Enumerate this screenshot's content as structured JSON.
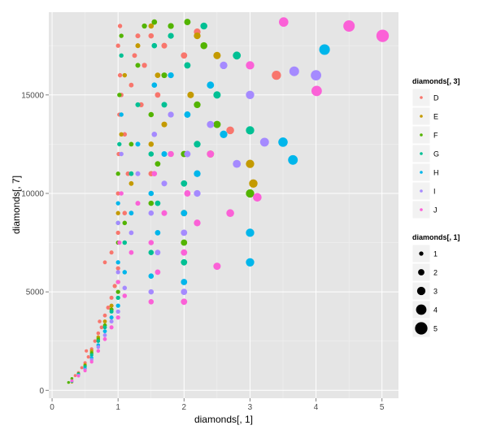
{
  "chart_data": {
    "type": "scatter",
    "xlabel": "diamonds[, 1]",
    "ylabel": "diamonds[, 7]",
    "xlim": [
      -0.05,
      5.25
    ],
    "ylim": [
      -400,
      19200
    ],
    "x_ticks": [
      0,
      1,
      2,
      3,
      4,
      5
    ],
    "x_tick_labels": [
      "0",
      "1",
      "2",
      "3",
      "4",
      "5"
    ],
    "y_ticks": [
      0,
      5000,
      10000,
      15000
    ],
    "y_tick_labels": [
      "0",
      "5000",
      "10000",
      "15000"
    ],
    "grid": true,
    "background": "#e5e5e5",
    "color_legend": {
      "title": "diamonds[, 3]",
      "placement": "right",
      "entries": [
        {
          "label": "D",
          "color": "#f8766d"
        },
        {
          "label": "E",
          "color": "#c49a00"
        },
        {
          "label": "F",
          "color": "#53b400"
        },
        {
          "label": "G",
          "color": "#00c094"
        },
        {
          "label": "H",
          "color": "#00b6eb"
        },
        {
          "label": "I",
          "color": "#a58aff"
        },
        {
          "label": "J",
          "color": "#fb61d7"
        }
      ]
    },
    "size_legend": {
      "title": "diamonds[, 1]",
      "placement": "right",
      "entries": [
        {
          "label": "1",
          "value": 1
        },
        {
          "label": "2",
          "value": 2
        },
        {
          "label": "3",
          "value": 3
        },
        {
          "label": "4",
          "value": 4
        },
        {
          "label": "5",
          "value": 5
        }
      ]
    },
    "series": [
      {
        "name": "D",
        "color": "#f8766d",
        "points": [
          [
            0.3,
            500
          ],
          [
            0.35,
            750
          ],
          [
            0.4,
            900
          ],
          [
            0.45,
            1150
          ],
          [
            0.5,
            1400
          ],
          [
            0.52,
            2000
          ],
          [
            0.55,
            1700
          ],
          [
            0.6,
            2100
          ],
          [
            0.65,
            2500
          ],
          [
            0.7,
            2900
          ],
          [
            0.72,
            3500
          ],
          [
            0.75,
            3200
          ],
          [
            0.8,
            3800
          ],
          [
            0.85,
            4200
          ],
          [
            0.9,
            4700
          ],
          [
            0.95,
            5300
          ],
          [
            1.0,
            6200
          ],
          [
            1.0,
            8000
          ],
          [
            1.0,
            10000
          ],
          [
            1.01,
            12000
          ],
          [
            1.02,
            14000
          ],
          [
            1.03,
            16000
          ],
          [
            1.03,
            18500
          ],
          [
            1.05,
            15000
          ],
          [
            1.1,
            13000
          ],
          [
            1.1,
            9000
          ],
          [
            1.15,
            11000
          ],
          [
            1.2,
            15500
          ],
          [
            1.25,
            17000
          ],
          [
            1.3,
            18000
          ],
          [
            1.35,
            14500
          ],
          [
            1.4,
            16500
          ],
          [
            1.5,
            18000
          ],
          [
            1.5,
            11000
          ],
          [
            1.6,
            15000
          ],
          [
            1.7,
            17500
          ],
          [
            0.9,
            7000
          ],
          [
            0.8,
            6500
          ],
          [
            1.0,
            17500
          ],
          [
            2.7,
            13200
          ],
          [
            3.4,
            16000
          ],
          [
            2.0,
            17000
          ],
          [
            2.2,
            18200
          ],
          [
            1.8,
            12000
          ]
        ]
      },
      {
        "name": "E",
        "color": "#c49a00",
        "points": [
          [
            0.3,
            420
          ],
          [
            0.4,
            800
          ],
          [
            0.5,
            1300
          ],
          [
            0.6,
            2000
          ],
          [
            0.7,
            2700
          ],
          [
            0.8,
            3500
          ],
          [
            0.9,
            4300
          ],
          [
            1.0,
            5500
          ],
          [
            1.0,
            9000
          ],
          [
            1.05,
            13000
          ],
          [
            1.1,
            16000
          ],
          [
            1.2,
            10500
          ],
          [
            1.3,
            17500
          ],
          [
            1.5,
            12500
          ],
          [
            1.5,
            18500
          ],
          [
            1.6,
            16000
          ],
          [
            1.7,
            13500
          ],
          [
            2.0,
            9000
          ],
          [
            2.1,
            15000
          ],
          [
            2.2,
            18000
          ],
          [
            2.4,
            12000
          ],
          [
            3.0,
            11500
          ],
          [
            3.05,
            10500
          ],
          [
            2.5,
            17000
          ]
        ]
      },
      {
        "name": "F",
        "color": "#53b400",
        "points": [
          [
            0.25,
            400
          ],
          [
            0.3,
            600
          ],
          [
            0.4,
            850
          ],
          [
            0.5,
            1250
          ],
          [
            0.6,
            1900
          ],
          [
            0.7,
            2600
          ],
          [
            0.8,
            3300
          ],
          [
            0.9,
            4100
          ],
          [
            1.0,
            5000
          ],
          [
            1.0,
            7500
          ],
          [
            1.0,
            11000
          ],
          [
            1.02,
            15000
          ],
          [
            1.05,
            18000
          ],
          [
            1.1,
            8500
          ],
          [
            1.2,
            12500
          ],
          [
            1.3,
            16500
          ],
          [
            1.4,
            18500
          ],
          [
            1.5,
            9500
          ],
          [
            1.5,
            14000
          ],
          [
            1.55,
            18700
          ],
          [
            1.6,
            11500
          ],
          [
            1.7,
            16000
          ],
          [
            1.8,
            18500
          ],
          [
            2.0,
            7500
          ],
          [
            2.0,
            12000
          ],
          [
            2.05,
            18700
          ],
          [
            2.2,
            14500
          ],
          [
            2.3,
            17500
          ],
          [
            2.5,
            13500
          ],
          [
            3.0,
            10000
          ]
        ]
      },
      {
        "name": "G",
        "color": "#00c094",
        "points": [
          [
            0.3,
            450
          ],
          [
            0.4,
            820
          ],
          [
            0.5,
            1200
          ],
          [
            0.6,
            1800
          ],
          [
            0.7,
            2500
          ],
          [
            0.8,
            3200
          ],
          [
            0.9,
            4000
          ],
          [
            1.0,
            4700
          ],
          [
            1.0,
            8500
          ],
          [
            1.02,
            12500
          ],
          [
            1.05,
            17000
          ],
          [
            1.1,
            7500
          ],
          [
            1.2,
            11000
          ],
          [
            1.3,
            14500
          ],
          [
            1.5,
            7000
          ],
          [
            1.5,
            12000
          ],
          [
            1.55,
            17500
          ],
          [
            1.6,
            9500
          ],
          [
            1.7,
            14500
          ],
          [
            1.8,
            18000
          ],
          [
            2.0,
            6500
          ],
          [
            2.0,
            10500
          ],
          [
            2.05,
            16500
          ],
          [
            2.2,
            12500
          ],
          [
            2.3,
            18500
          ],
          [
            2.5,
            15000
          ],
          [
            3.0,
            13200
          ],
          [
            2.8,
            17000
          ]
        ]
      },
      {
        "name": "H",
        "color": "#00b6eb",
        "points": [
          [
            0.3,
            470
          ],
          [
            0.4,
            780
          ],
          [
            0.5,
            1100
          ],
          [
            0.6,
            1650
          ],
          [
            0.7,
            2300
          ],
          [
            0.8,
            3000
          ],
          [
            0.9,
            3700
          ],
          [
            1.0,
            4300
          ],
          [
            1.0,
            6500
          ],
          [
            1.0,
            9500
          ],
          [
            1.05,
            14000
          ],
          [
            1.1,
            6000
          ],
          [
            1.2,
            9000
          ],
          [
            1.3,
            12500
          ],
          [
            1.5,
            5800
          ],
          [
            1.5,
            10000
          ],
          [
            1.55,
            15500
          ],
          [
            1.6,
            8000
          ],
          [
            1.7,
            12000
          ],
          [
            1.8,
            16000
          ],
          [
            2.0,
            5500
          ],
          [
            2.0,
            9000
          ],
          [
            2.05,
            14000
          ],
          [
            2.2,
            11000
          ],
          [
            2.4,
            15500
          ],
          [
            3.0,
            6500
          ],
          [
            3.0,
            8000
          ],
          [
            3.5,
            12600
          ],
          [
            3.65,
            11700
          ],
          [
            4.13,
            17300
          ],
          [
            2.6,
            13000
          ]
        ]
      },
      {
        "name": "I",
        "color": "#a58aff",
        "points": [
          [
            0.3,
            480
          ],
          [
            0.4,
            760
          ],
          [
            0.5,
            1050
          ],
          [
            0.6,
            1550
          ],
          [
            0.7,
            2200
          ],
          [
            0.8,
            2800
          ],
          [
            0.9,
            3500
          ],
          [
            1.0,
            4000
          ],
          [
            1.0,
            6000
          ],
          [
            1.0,
            8500
          ],
          [
            1.05,
            12000
          ],
          [
            1.1,
            5200
          ],
          [
            1.2,
            8000
          ],
          [
            1.3,
            11000
          ],
          [
            1.5,
            5000
          ],
          [
            1.5,
            9000
          ],
          [
            1.55,
            13000
          ],
          [
            1.6,
            7000
          ],
          [
            1.7,
            10500
          ],
          [
            1.8,
            14000
          ],
          [
            2.0,
            5000
          ],
          [
            2.0,
            8000
          ],
          [
            2.05,
            12000
          ],
          [
            2.2,
            10000
          ],
          [
            2.4,
            13500
          ],
          [
            2.6,
            16500
          ],
          [
            3.0,
            15000
          ],
          [
            3.22,
            12600
          ],
          [
            3.67,
            16200
          ],
          [
            4.0,
            16000
          ],
          [
            2.8,
            11500
          ]
        ]
      },
      {
        "name": "J",
        "color": "#fb61d7",
        "points": [
          [
            0.3,
            490
          ],
          [
            0.4,
            730
          ],
          [
            0.5,
            1000
          ],
          [
            0.6,
            1450
          ],
          [
            0.7,
            2000
          ],
          [
            0.8,
            2600
          ],
          [
            0.9,
            3200
          ],
          [
            1.0,
            3700
          ],
          [
            1.0,
            5500
          ],
          [
            1.02,
            7500
          ],
          [
            1.05,
            10000
          ],
          [
            1.1,
            4800
          ],
          [
            1.2,
            7000
          ],
          [
            1.3,
            9500
          ],
          [
            1.5,
            4500
          ],
          [
            1.5,
            7500
          ],
          [
            1.55,
            11000
          ],
          [
            1.6,
            6000
          ],
          [
            1.7,
            9000
          ],
          [
            1.8,
            12000
          ],
          [
            2.0,
            4500
          ],
          [
            2.0,
            7000
          ],
          [
            2.05,
            10000
          ],
          [
            2.2,
            8500
          ],
          [
            2.4,
            12000
          ],
          [
            2.5,
            6300
          ],
          [
            2.7,
            9000
          ],
          [
            3.0,
            16500
          ],
          [
            3.11,
            9800
          ],
          [
            3.51,
            18700
          ],
          [
            4.01,
            15200
          ],
          [
            4.5,
            18500
          ],
          [
            5.01,
            18000
          ]
        ]
      }
    ]
  }
}
